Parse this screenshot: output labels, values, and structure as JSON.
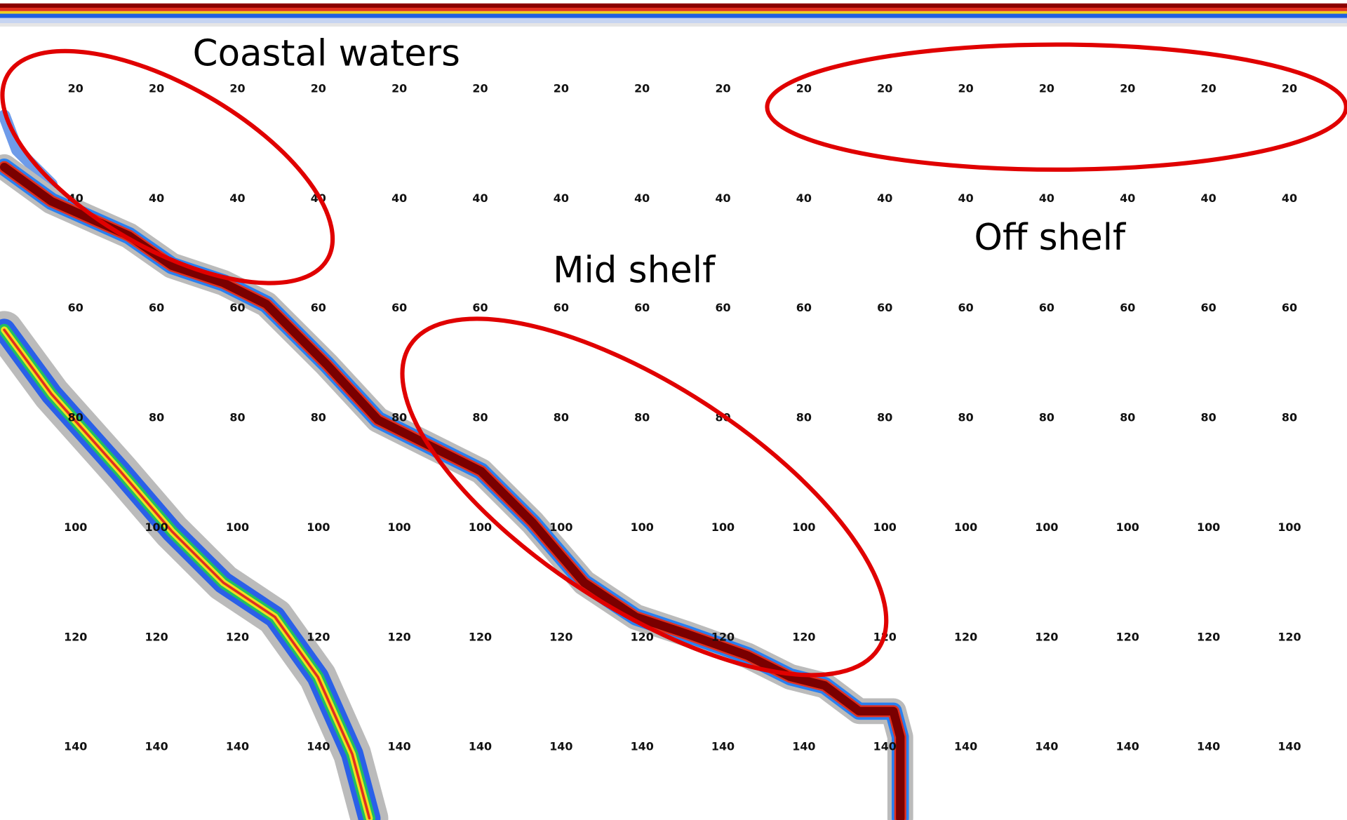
{
  "annotations": [
    "Coastal waters",
    "Mid shelf",
    "Off shelf"
  ],
  "depth_labels": [
    [
      20,
      20,
      20,
      20,
      20,
      20,
      20,
      20,
      20,
      20,
      20,
      20,
      20,
      20,
      20,
      20
    ],
    [
      40,
      40,
      40,
      40,
      40,
      40,
      40,
      40,
      40,
      40,
      40,
      40,
      40,
      40,
      40,
      40
    ],
    [
      60,
      60,
      60,
      60,
      60,
      60,
      60,
      60,
      60,
      60,
      60,
      60,
      60,
      60,
      60,
      60
    ],
    [
      80,
      80,
      80,
      80,
      80,
      80,
      80,
      80,
      80,
      80,
      80,
      80,
      80,
      80,
      80,
      80
    ],
    [
      100,
      100,
      100,
      100,
      100,
      100,
      100,
      100,
      100,
      100,
      100,
      100,
      100,
      100,
      100,
      100
    ],
    [
      120,
      120,
      120,
      120,
      120,
      120,
      120,
      120,
      120,
      120,
      120,
      120,
      120,
      120,
      120,
      120
    ],
    [
      140,
      140,
      140,
      140,
      140,
      140,
      140,
      140,
      140,
      140,
      140,
      140,
      140,
      140,
      140,
      140
    ]
  ]
}
